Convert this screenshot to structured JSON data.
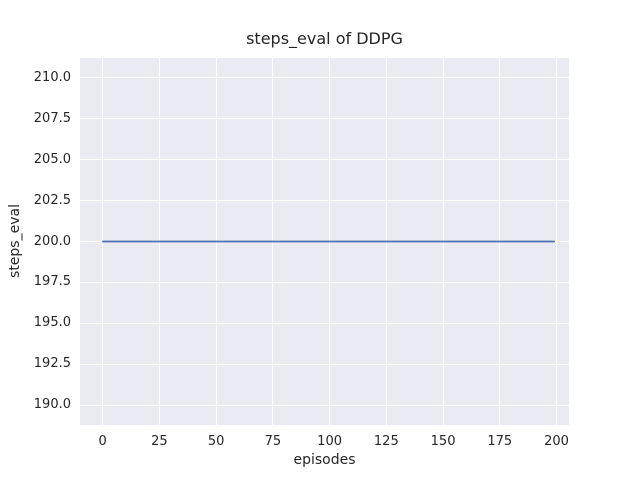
{
  "chart_data": {
    "type": "line",
    "title": "steps_eval of DDPG",
    "xlabel": "episodes",
    "ylabel": "steps_eval",
    "x": [
      0,
      199
    ],
    "series": [
      {
        "name": "steps_eval",
        "values": [
          200,
          200
        ],
        "note": "constant value 200 across all episodes 0-199",
        "color": "#4c72b0"
      }
    ],
    "xticks": [
      0,
      25,
      50,
      75,
      100,
      125,
      150,
      175,
      200
    ],
    "xtick_labels": [
      "0",
      "25",
      "50",
      "75",
      "100",
      "125",
      "150",
      "175",
      "200"
    ],
    "yticks": [
      190.0,
      192.5,
      195.0,
      197.5,
      200.0,
      202.5,
      205.0,
      207.5,
      210.0
    ],
    "ytick_labels": [
      "190.0",
      "192.5",
      "195.0",
      "197.5",
      "200.0",
      "202.5",
      "205.0",
      "207.5",
      "210.0"
    ],
    "xlim": [
      -10,
      205.5
    ],
    "ylim": [
      188.8,
      211.2
    ],
    "grid": true,
    "legend": false,
    "style": {
      "figure_background": "#ffffff",
      "axes_background": "#eaeaf2",
      "grid_color": "#ffffff",
      "text_color": "#262626",
      "line_color": "#4c72b0",
      "line_width": 1.8
    }
  }
}
